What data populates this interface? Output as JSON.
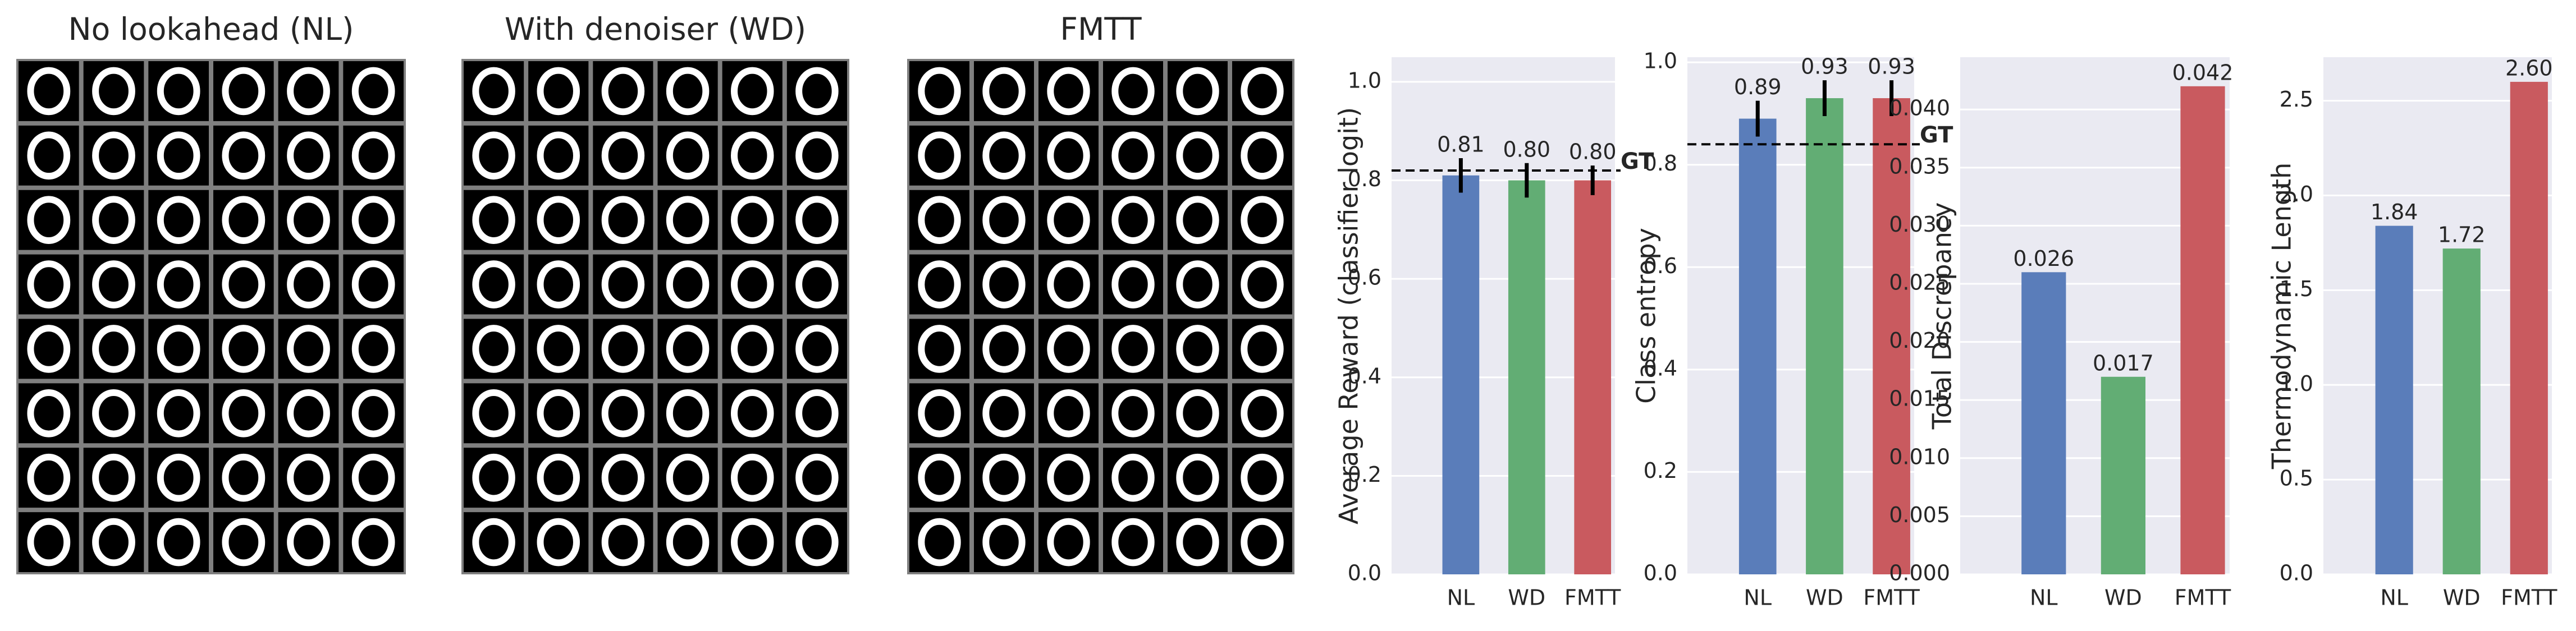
{
  "image_panels": [
    {
      "title": "No lookahead (NL)"
    },
    {
      "title": "With denoiser (WD)"
    },
    {
      "title": "FMTT"
    }
  ],
  "chart_data": [
    {
      "type": "bar",
      "ylabel": "Average Reward (classifier logit)",
      "categories": [
        "NL",
        "WD",
        "FMTT"
      ],
      "values": [
        0.81,
        0.8,
        0.8
      ],
      "value_labels": [
        "0.81",
        "0.80",
        "0.80"
      ],
      "errors": [
        0.035,
        0.035,
        0.03
      ],
      "colors": [
        "#5a7dba",
        "#62ad74",
        "#c95a5f"
      ],
      "reference_line": {
        "value": 0.82,
        "label": "GT"
      },
      "ylim": [
        0,
        1.05
      ],
      "yticks": [
        {
          "value": 0,
          "label": "0.0"
        },
        {
          "value": 0.2,
          "label": "0.2"
        },
        {
          "value": 0.4,
          "label": "0.4"
        },
        {
          "value": 0.6,
          "label": "0.6"
        },
        {
          "value": 0.8,
          "label": "0.8"
        },
        {
          "value": 1,
          "label": "1.0"
        }
      ],
      "grid": true
    },
    {
      "type": "bar",
      "ylabel": "Class entropy",
      "categories": [
        "NL",
        "WD",
        "FMTT"
      ],
      "values": [
        0.89,
        0.93,
        0.93
      ],
      "value_labels": [
        "0.89",
        "0.93",
        "0.93"
      ],
      "errors": [
        0.035,
        0.035,
        0.035
      ],
      "colors": [
        "#5a7dba",
        "#62ad74",
        "#c95a5f"
      ],
      "reference_line": {
        "value": 0.84,
        "label": "GT"
      },
      "ylim": [
        0,
        1.01
      ],
      "yticks": [
        {
          "value": 0,
          "label": "0.0"
        },
        {
          "value": 0.2,
          "label": "0.2"
        },
        {
          "value": 0.4,
          "label": "0.4"
        },
        {
          "value": 0.6,
          "label": "0.6"
        },
        {
          "value": 0.8,
          "label": "0.8"
        },
        {
          "value": 1,
          "label": "1.0"
        }
      ],
      "grid": true
    },
    {
      "type": "bar",
      "ylabel": "Total Discrepancy",
      "categories": [
        "NL",
        "WD",
        "FMTT"
      ],
      "values": [
        0.026,
        0.017,
        0.042
      ],
      "value_labels": [
        "0.026",
        "0.017",
        "0.042"
      ],
      "colors": [
        "#5a7dba",
        "#62ad74",
        "#c95a5f"
      ],
      "ylim": [
        0,
        0.0445
      ],
      "yticks": [
        {
          "value": 0,
          "label": "0.000"
        },
        {
          "value": 0.005,
          "label": "0.005"
        },
        {
          "value": 0.01,
          "label": "0.010"
        },
        {
          "value": 0.015,
          "label": "0.015"
        },
        {
          "value": 0.02,
          "label": "0.020"
        },
        {
          "value": 0.025,
          "label": "0.025"
        },
        {
          "value": 0.03,
          "label": "0.030"
        },
        {
          "value": 0.035,
          "label": "0.035"
        },
        {
          "value": 0.04,
          "label": "0.040"
        }
      ],
      "grid": true
    },
    {
      "type": "bar",
      "ylabel": "Thermodynamic Length",
      "categories": [
        "NL",
        "WD",
        "FMTT"
      ],
      "values": [
        1.84,
        1.72,
        2.6
      ],
      "value_labels": [
        "1.84",
        "1.72",
        "2.60"
      ],
      "colors": [
        "#5a7dba",
        "#62ad74",
        "#c95a5f"
      ],
      "ylim": [
        0,
        2.73
      ],
      "yticks": [
        {
          "value": 0,
          "label": "0.0"
        },
        {
          "value": 0.5,
          "label": "0.5"
        },
        {
          "value": 1,
          "label": "1.0"
        },
        {
          "value": 1.5,
          "label": "1.5"
        },
        {
          "value": 2,
          "label": "2.0"
        },
        {
          "value": 2.5,
          "label": "2.5"
        }
      ],
      "grid": true
    }
  ]
}
